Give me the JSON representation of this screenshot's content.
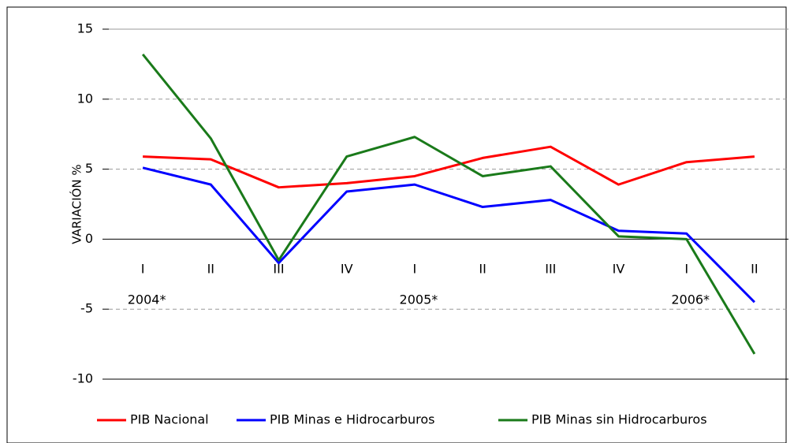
{
  "chart_data": {
    "type": "line",
    "y_label": "VARIACIÓN %",
    "categories": [
      "I",
      "II",
      "III",
      "IV",
      "I",
      "II",
      "III",
      "IV",
      "I",
      "II"
    ],
    "years": [
      "2004*",
      null,
      null,
      null,
      "2005*",
      null,
      null,
      null,
      "2006*",
      null
    ],
    "series": [
      {
        "name": "PIB Nacional",
        "color": "#ff0000",
        "values": [
          5.9,
          5.7,
          3.7,
          4.0,
          4.5,
          5.8,
          6.6,
          3.9,
          5.5,
          5.9
        ]
      },
      {
        "name": "PIB Minas e Hidrocarburos",
        "color": "#0000ff",
        "values": [
          5.1,
          3.9,
          -1.7,
          3.4,
          3.9,
          2.3,
          2.8,
          0.6,
          0.4,
          -4.5
        ]
      },
      {
        "name": "PIB Minas sin Hidrocarburos",
        "color": "#1a7a1a",
        "values": [
          13.2,
          7.2,
          -1.5,
          5.9,
          7.3,
          4.5,
          5.2,
          0.2,
          0.0,
          -8.2
        ]
      }
    ],
    "ylim": [
      -10,
      15
    ],
    "yticks": [
      -10,
      -5,
      0,
      5,
      10,
      15
    ],
    "grid": true,
    "legend": "bottom"
  }
}
